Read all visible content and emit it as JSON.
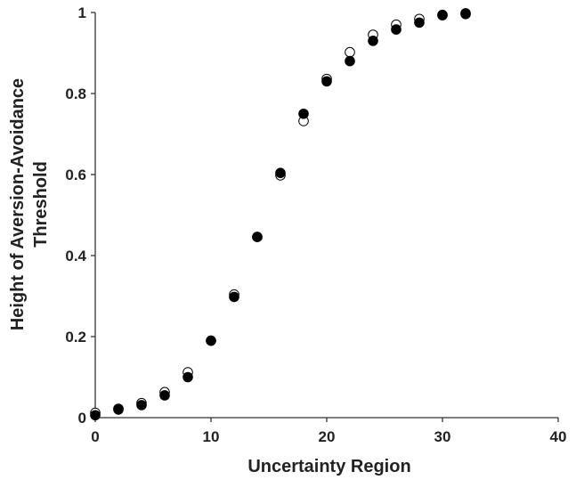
{
  "chart_data": {
    "type": "scatter",
    "title": "",
    "xlabel": "Uncertainty Region",
    "ylabel_lines": [
      "Height of Aversion-Avoidance",
      "Threshold"
    ],
    "xlim": [
      0,
      40
    ],
    "ylim": [
      0,
      1
    ],
    "x_ticks": [
      0,
      10,
      20,
      30,
      40
    ],
    "y_ticks": [
      0,
      0.2,
      0.4,
      0.6,
      0.8,
      1
    ],
    "y_tick_labels": [
      "0",
      "0.2",
      "0.4",
      "0.6",
      "0.8",
      "1"
    ],
    "grid": false,
    "legend": "none",
    "series": [
      {
        "marker": "open-circle",
        "color": "#000000",
        "x": [
          0,
          2,
          4,
          6,
          8,
          10,
          12,
          14,
          16,
          18,
          20,
          22,
          24,
          26,
          28,
          30,
          32
        ],
        "y": [
          0.012,
          0.022,
          0.036,
          0.063,
          0.112,
          0.19,
          0.304,
          0.446,
          0.598,
          0.732,
          0.836,
          0.902,
          0.945,
          0.97,
          0.984,
          0.994,
          0.998
        ]
      },
      {
        "marker": "filled-circle",
        "color": "#000000",
        "x": [
          0,
          2,
          4,
          6,
          8,
          10,
          12,
          14,
          16,
          18,
          20,
          22,
          24,
          26,
          28,
          30,
          32
        ],
        "y": [
          0.006,
          0.02,
          0.031,
          0.055,
          0.1,
          0.19,
          0.298,
          0.446,
          0.604,
          0.75,
          0.83,
          0.88,
          0.93,
          0.958,
          0.975,
          0.993,
          0.996
        ]
      }
    ]
  }
}
